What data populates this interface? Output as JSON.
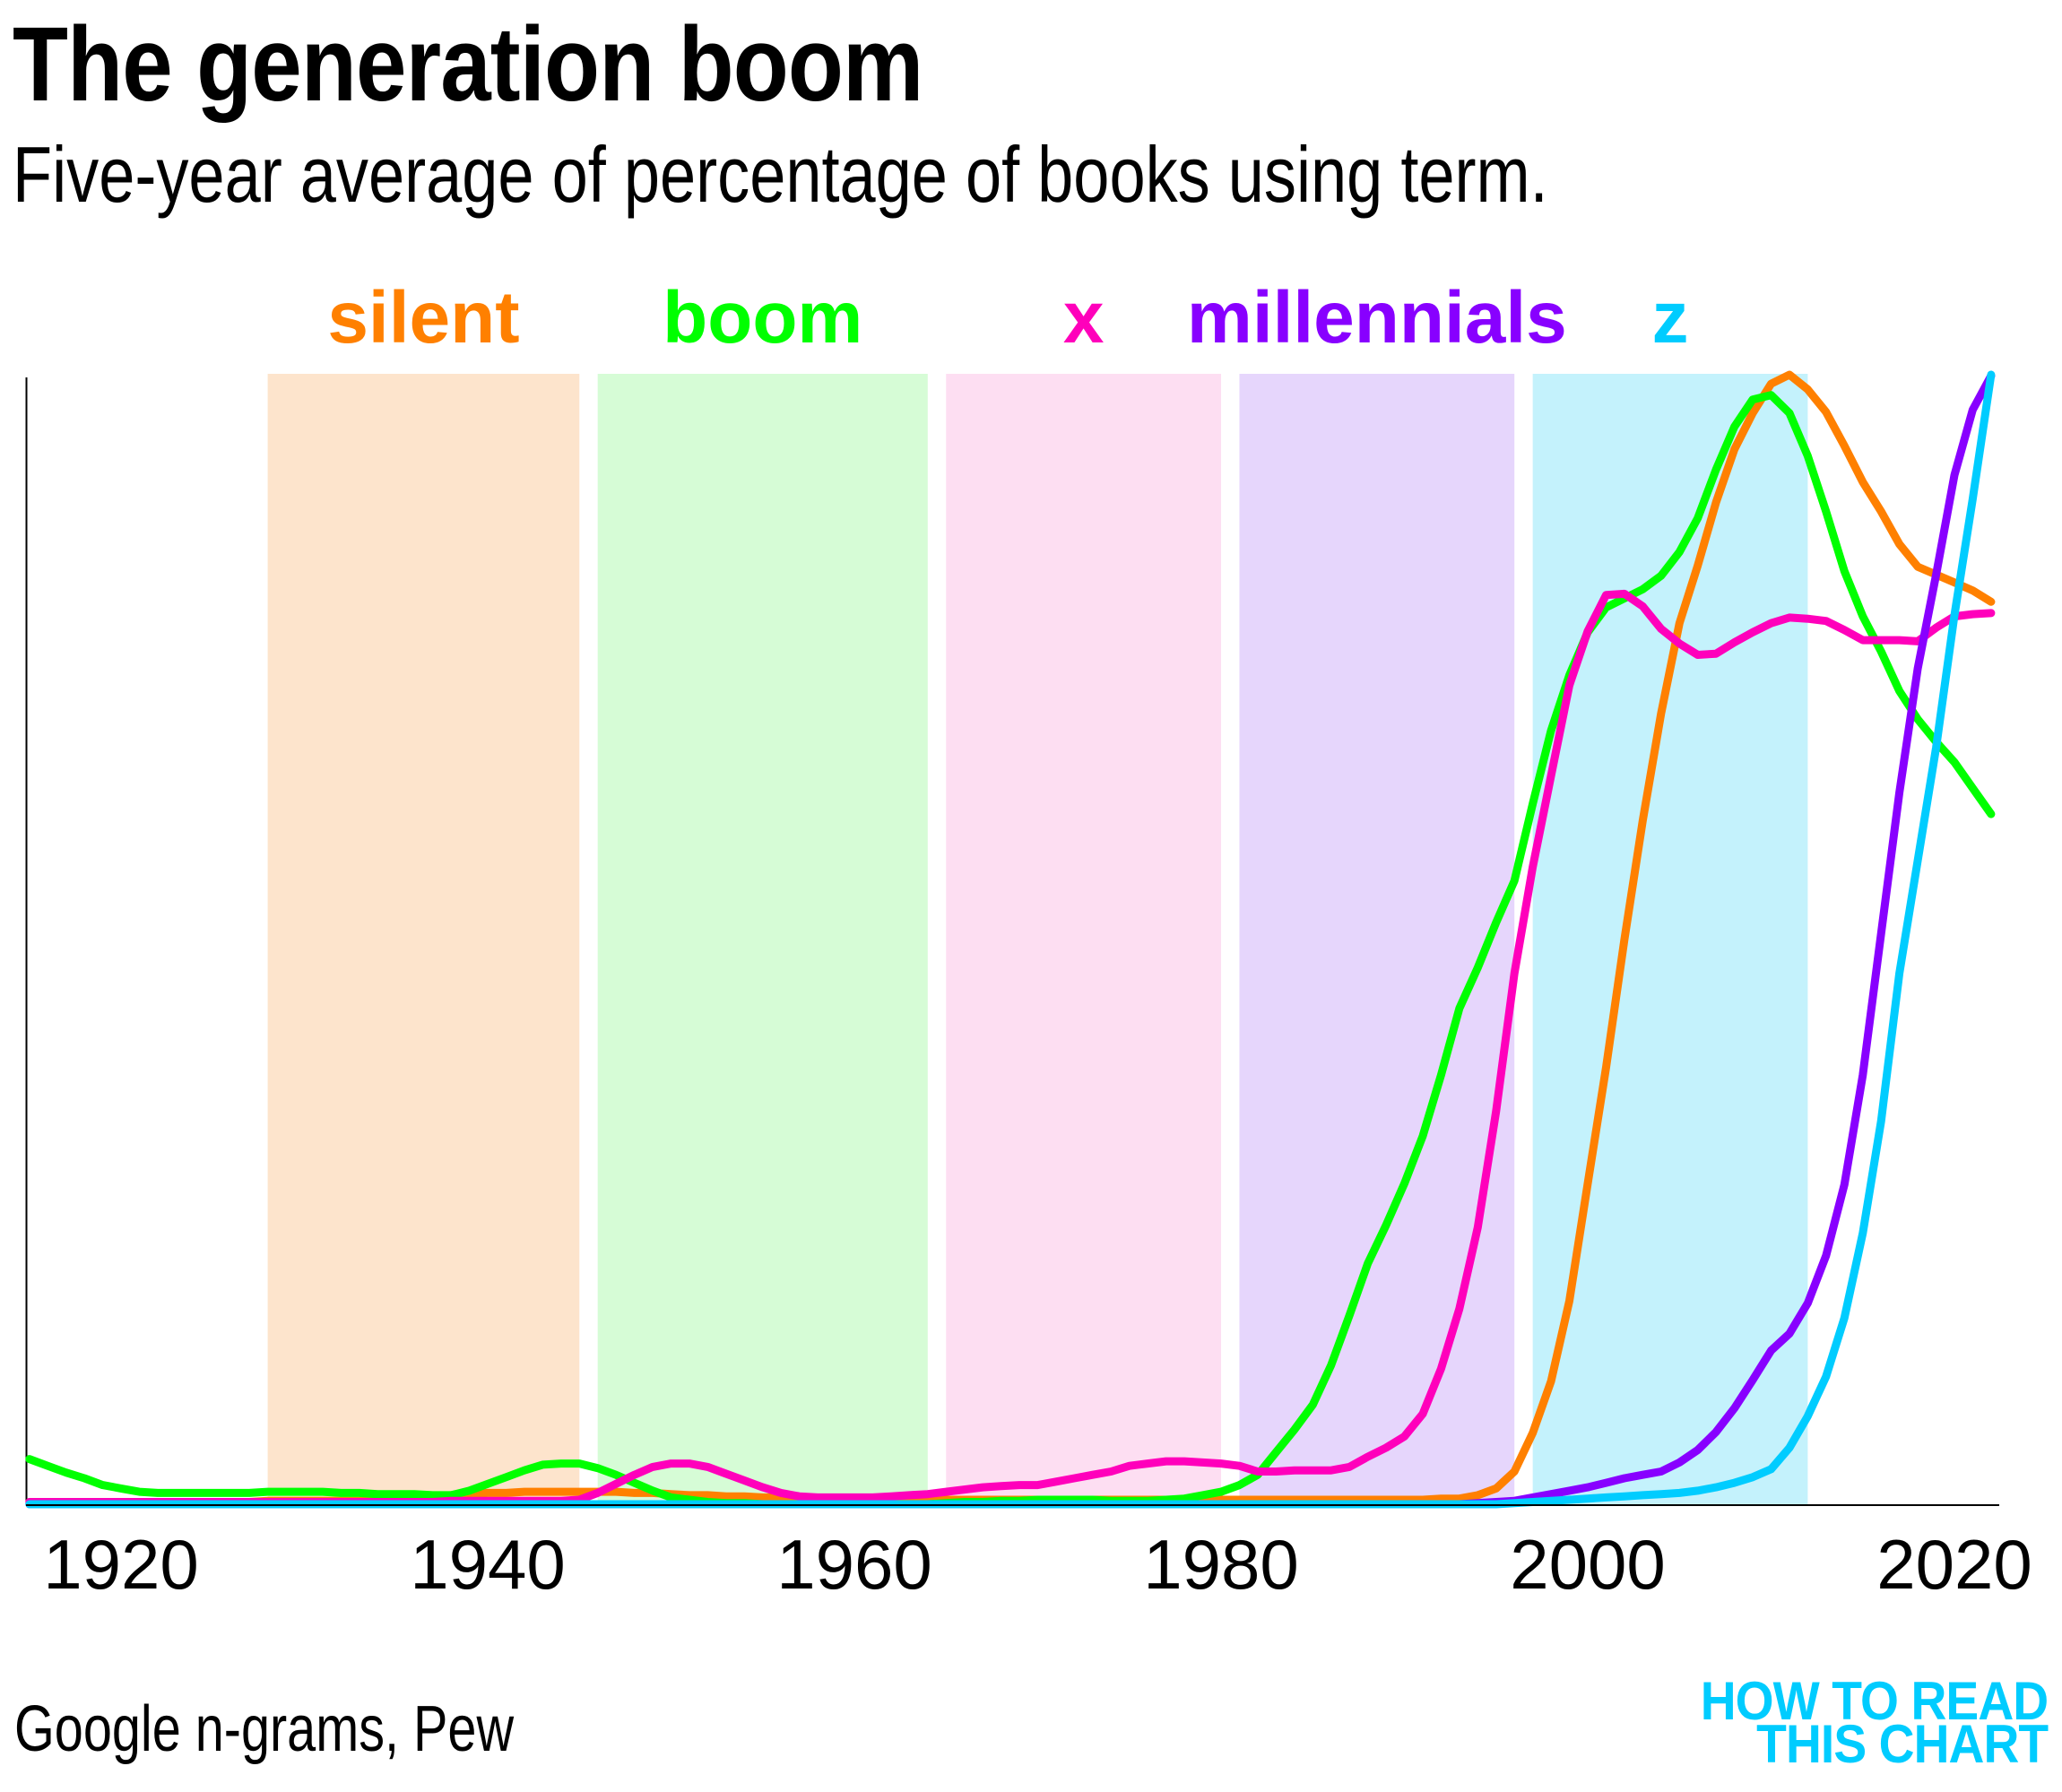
{
  "header": {
    "title": "The generation boom",
    "subtitle": "Five-year average of percentage of books using term."
  },
  "footer": {
    "source": "Google n-grams, Pew",
    "logo_line1": "HOW TO READ",
    "logo_line2": "THIS CHART",
    "logo_color": "#00CCFF"
  },
  "chart_data": {
    "type": "line",
    "title": "The generation boom",
    "subtitle": "Five-year average of percentage of books using term.",
    "xlabel": "",
    "ylabel": "",
    "xlim": [
      1915,
      2022
    ],
    "ylim": [
      0,
      100
    ],
    "y_units": "relative index (each term's peak = 100); y axis unlabeled",
    "grid": false,
    "legend": "top (labels above shaded generation bands)",
    "x_ticks": [
      1920,
      1940,
      1960,
      1980,
      2000,
      2020
    ],
    "x_tick_labels": [
      "1920",
      "1940",
      "1960",
      "1980",
      "2000",
      "2020"
    ],
    "bands": [
      {
        "name": "silent",
        "start": 1928,
        "end": 1945,
        "color": "#FDE4CC"
      },
      {
        "name": "boom",
        "start": 1946,
        "end": 1964,
        "color": "#D6FCD6"
      },
      {
        "name": "x",
        "start": 1965,
        "end": 1980,
        "color": "#FDDEF2"
      },
      {
        "name": "millennials",
        "start": 1981,
        "end": 1996,
        "color": "#E6D6FC"
      },
      {
        "name": "z",
        "start": 1997,
        "end": 2012,
        "color": "#C4F2FC"
      }
    ],
    "x": [
      1915,
      1916,
      1917,
      1918,
      1919,
      1920,
      1921,
      1922,
      1923,
      1924,
      1925,
      1926,
      1927,
      1928,
      1929,
      1930,
      1931,
      1932,
      1933,
      1934,
      1935,
      1936,
      1937,
      1938,
      1939,
      1940,
      1941,
      1942,
      1943,
      1944,
      1945,
      1946,
      1947,
      1948,
      1949,
      1950,
      1951,
      1952,
      1953,
      1954,
      1955,
      1956,
      1957,
      1958,
      1959,
      1960,
      1961,
      1962,
      1963,
      1964,
      1965,
      1966,
      1967,
      1968,
      1969,
      1970,
      1971,
      1972,
      1973,
      1974,
      1975,
      1976,
      1977,
      1978,
      1979,
      1980,
      1981,
      1982,
      1983,
      1984,
      1985,
      1986,
      1987,
      1988,
      1989,
      1990,
      1991,
      1992,
      1993,
      1994,
      1995,
      1996,
      1997,
      1998,
      1999,
      2000,
      2001,
      2002,
      2003,
      2004,
      2005,
      2006,
      2007,
      2008,
      2009,
      2010,
      2011,
      2012,
      2013,
      2014,
      2015,
      2016,
      2017,
      2018,
      2019,
      2020,
      2021,
      2022
    ],
    "series": [
      {
        "name": "silent",
        "color": "#FF8000",
        "values": [
          0.2,
          0.2,
          0.2,
          0.2,
          0.2,
          0.2,
          0.2,
          0.2,
          0.2,
          0.2,
          0.2,
          0.2,
          0.2,
          0.3,
          0.3,
          0.3,
          0.3,
          0.3,
          0.3,
          0.4,
          0.5,
          0.6,
          0.7,
          0.8,
          0.9,
          1.0,
          1.0,
          1.1,
          1.1,
          1.1,
          1.1,
          1.1,
          1.1,
          1.0,
          1.0,
          0.9,
          0.8,
          0.8,
          0.7,
          0.7,
          0.6,
          0.6,
          0.5,
          0.5,
          0.4,
          0.4,
          0.4,
          0.4,
          0.4,
          0.4,
          0.4,
          0.4,
          0.4,
          0.4,
          0.4,
          0.4,
          0.4,
          0.4,
          0.4,
          0.4,
          0.4,
          0.4,
          0.4,
          0.4,
          0.4,
          0.4,
          0.4,
          0.4,
          0.4,
          0.4,
          0.4,
          0.4,
          0.4,
          0.4,
          0.4,
          0.4,
          0.4,
          0.5,
          0.5,
          0.8,
          1.4,
          2.9,
          6.3,
          10.9,
          18.0,
          28.4,
          38.7,
          50.0,
          60.5,
          70.0,
          78.0,
          83.1,
          88.7,
          93.4,
          96.6,
          99.2,
          100.0,
          98.7,
          96.7,
          93.7,
          90.5,
          87.9,
          85.0,
          83.0,
          82.3,
          81.6,
          80.9,
          79.9
        ]
      },
      {
        "name": "boom",
        "color": "#00FF00",
        "values": [
          4.0,
          3.4,
          2.8,
          2.3,
          1.7,
          1.4,
          1.1,
          1.0,
          1.0,
          1.0,
          1.0,
          1.0,
          1.0,
          1.1,
          1.1,
          1.1,
          1.1,
          1.0,
          1.0,
          0.9,
          0.9,
          0.9,
          0.8,
          0.8,
          1.2,
          1.8,
          2.4,
          3.0,
          3.5,
          3.6,
          3.6,
          3.2,
          2.6,
          1.9,
          1.2,
          0.6,
          0.4,
          0.2,
          0.1,
          0.1,
          0.0,
          0.0,
          0.0,
          0.0,
          0.0,
          0.0,
          0.0,
          0.0,
          0.0,
          0.0,
          0.1,
          0.2,
          0.2,
          0.3,
          0.3,
          0.4,
          0.4,
          0.4,
          0.4,
          0.3,
          0.3,
          0.3,
          0.4,
          0.5,
          0.8,
          1.1,
          1.7,
          2.6,
          4.6,
          6.6,
          8.8,
          12.3,
          16.7,
          21.3,
          24.7,
          28.4,
          32.6,
          38.0,
          43.9,
          47.5,
          51.5,
          55.2,
          62.0,
          68.5,
          73.4,
          77.2,
          79.4,
          80.2,
          81.0,
          82.2,
          84.3,
          87.3,
          91.6,
          95.4,
          97.8,
          98.2,
          96.6,
          92.8,
          87.9,
          82.6,
          78.6,
          75.5,
          72.0,
          69.5,
          67.5,
          65.7,
          63.4,
          61.1
        ]
      },
      {
        "name": "x",
        "color": "#FF00BB",
        "values": [
          0.2,
          0.2,
          0.2,
          0.2,
          0.2,
          0.2,
          0.2,
          0.2,
          0.2,
          0.2,
          0.2,
          0.2,
          0.2,
          0.2,
          0.2,
          0.2,
          0.2,
          0.2,
          0.2,
          0.2,
          0.2,
          0.2,
          0.2,
          0.3,
          0.3,
          0.3,
          0.3,
          0.3,
          0.3,
          0.3,
          0.4,
          1.0,
          1.8,
          2.6,
          3.3,
          3.6,
          3.6,
          3.3,
          2.7,
          2.1,
          1.5,
          1.0,
          0.7,
          0.6,
          0.6,
          0.6,
          0.6,
          0.7,
          0.8,
          0.9,
          1.1,
          1.3,
          1.5,
          1.6,
          1.7,
          1.7,
          2.0,
          2.3,
          2.6,
          2.9,
          3.4,
          3.6,
          3.8,
          3.8,
          3.7,
          3.6,
          3.4,
          2.9,
          2.9,
          3.0,
          3.0,
          3.0,
          3.3,
          4.2,
          5.0,
          6.0,
          8.0,
          12.0,
          17.3,
          24.5,
          34.8,
          47.0,
          56.4,
          64.5,
          72.5,
          77.3,
          80.5,
          80.6,
          79.5,
          77.5,
          76.2,
          75.2,
          75.3,
          76.3,
          77.2,
          78.0,
          78.5,
          78.4,
          78.2,
          77.4,
          76.5,
          76.5,
          76.5,
          76.4,
          77.6,
          78.6,
          78.8,
          78.9
        ]
      },
      {
        "name": "millennials",
        "color": "#8800FF",
        "values": [
          0.0,
          0.0,
          0.0,
          0.0,
          0.0,
          0.0,
          0.0,
          0.0,
          0.0,
          0.0,
          0.0,
          0.0,
          0.0,
          0.0,
          0.0,
          0.0,
          0.0,
          0.0,
          0.0,
          0.0,
          0.0,
          0.0,
          0.0,
          0.0,
          0.0,
          0.0,
          0.0,
          0.0,
          0.0,
          0.0,
          0.0,
          0.0,
          0.0,
          0.0,
          0.0,
          0.0,
          0.0,
          0.0,
          0.0,
          0.0,
          0.0,
          0.0,
          0.0,
          0.0,
          0.0,
          0.0,
          0.0,
          0.0,
          0.0,
          0.0,
          0.0,
          0.0,
          0.0,
          0.0,
          0.0,
          0.0,
          0.0,
          0.0,
          0.0,
          0.0,
          0.0,
          0.0,
          0.0,
          0.0,
          0.0,
          0.0,
          0.0,
          0.0,
          0.0,
          0.0,
          0.0,
          0.0,
          0.0,
          0.0,
          0.0,
          0.0,
          0.0,
          0.0,
          0.0,
          0.1,
          0.2,
          0.3,
          0.6,
          0.9,
          1.2,
          1.5,
          1.9,
          2.3,
          2.6,
          2.9,
          3.7,
          4.8,
          6.4,
          8.5,
          11.0,
          13.6,
          15.1,
          17.8,
          22.0,
          28.3,
          38.0,
          50.5,
          63.0,
          74.0,
          82.3,
          91.1,
          96.9,
          99.9
        ]
      },
      {
        "name": "z",
        "color": "#00CCFF",
        "values": [
          0.0,
          0.0,
          0.0,
          0.0,
          0.0,
          0.0,
          0.0,
          0.0,
          0.0,
          0.0,
          0.0,
          0.0,
          0.0,
          0.0,
          0.0,
          0.0,
          0.0,
          0.0,
          0.0,
          0.0,
          0.0,
          0.0,
          0.0,
          0.0,
          0.0,
          0.0,
          0.0,
          0.0,
          0.0,
          0.0,
          0.0,
          0.0,
          0.0,
          0.0,
          0.0,
          0.0,
          0.0,
          0.0,
          0.0,
          0.0,
          0.0,
          0.0,
          0.0,
          0.0,
          0.0,
          0.0,
          0.0,
          0.0,
          0.0,
          0.0,
          0.0,
          0.0,
          0.0,
          0.0,
          0.0,
          0.0,
          0.0,
          0.0,
          0.0,
          0.0,
          0.0,
          0.0,
          0.0,
          0.0,
          0.0,
          0.0,
          0.0,
          0.0,
          0.0,
          0.0,
          0.0,
          0.0,
          0.0,
          0.0,
          0.0,
          0.0,
          0.0,
          0.0,
          0.0,
          0.0,
          0.0,
          0.1,
          0.2,
          0.3,
          0.4,
          0.5,
          0.6,
          0.7,
          0.8,
          0.9,
          1.0,
          1.2,
          1.5,
          1.9,
          2.4,
          3.1,
          5.0,
          7.8,
          11.3,
          16.5,
          24.0,
          33.9,
          47.0,
          57.0,
          67.0,
          78.7,
          89.0,
          100.0
        ]
      }
    ]
  }
}
